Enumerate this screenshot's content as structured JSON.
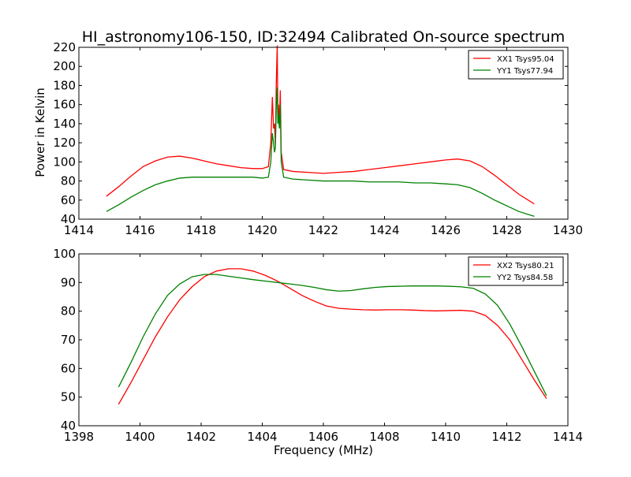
{
  "figure": {
    "title": "HI_astronomy106-150, ID:32494 Calibrated On-source spectrum",
    "shared_xlabel": "Frequency (MHz)"
  },
  "colors": {
    "XX": "#ff0000",
    "YY": "#008000",
    "axes": "#000000",
    "background": "#ffffff"
  },
  "chart_data": [
    {
      "type": "line",
      "title": "HI_astronomy106-150, ID:32494 Calibrated On-source spectrum",
      "xlabel": "",
      "ylabel": "Power in Kelvin",
      "xlim": [
        1414,
        1430
      ],
      "ylim": [
        40,
        220
      ],
      "xticks": [
        1414,
        1416,
        1418,
        1420,
        1422,
        1424,
        1426,
        1428,
        1430
      ],
      "yticks": [
        40,
        60,
        80,
        100,
        120,
        140,
        160,
        180,
        200,
        220
      ],
      "grid": false,
      "legend_position": "top-right",
      "series": [
        {
          "name": "XX1 Tsys95.04",
          "color": "#ff0000",
          "x": [
            1414.9,
            1415.3,
            1415.7,
            1416.1,
            1416.5,
            1416.9,
            1417.3,
            1417.7,
            1418.1,
            1418.5,
            1418.9,
            1419.3,
            1419.7,
            1420.0,
            1420.2,
            1420.28,
            1420.33,
            1420.37,
            1420.4,
            1420.43,
            1420.46,
            1420.49,
            1420.51,
            1420.53,
            1420.56,
            1420.59,
            1420.62,
            1420.7,
            1421.0,
            1421.5,
            1422.0,
            1422.5,
            1423.0,
            1423.5,
            1424.0,
            1424.5,
            1425.0,
            1425.5,
            1426.0,
            1426.4,
            1426.8,
            1427.2,
            1427.6,
            1428.0,
            1428.4,
            1428.9
          ],
          "y": [
            64,
            74,
            85,
            95,
            101,
            105,
            106,
            104,
            101,
            98,
            96,
            94,
            93,
            93,
            95,
            120,
            168,
            135,
            140,
            118,
            185,
            222,
            150,
            160,
            140,
            175,
            110,
            92,
            90,
            89,
            88,
            89,
            90,
            92,
            94,
            96,
            98,
            100,
            102,
            103,
            101,
            95,
            86,
            76,
            66,
            56
          ]
        },
        {
          "name": "YY1 Tsys77.94",
          "color": "#008000",
          "x": [
            1414.9,
            1415.3,
            1415.7,
            1416.1,
            1416.5,
            1416.9,
            1417.3,
            1417.7,
            1418.1,
            1418.5,
            1418.9,
            1419.3,
            1419.7,
            1420.0,
            1420.2,
            1420.28,
            1420.33,
            1420.37,
            1420.4,
            1420.43,
            1420.46,
            1420.49,
            1420.51,
            1420.53,
            1420.56,
            1420.59,
            1420.62,
            1420.7,
            1421.0,
            1421.5,
            1422.0,
            1422.5,
            1423.0,
            1423.5,
            1424.0,
            1424.5,
            1425.0,
            1425.5,
            1426.0,
            1426.4,
            1426.8,
            1427.2,
            1427.6,
            1428.0,
            1428.4,
            1428.9
          ],
          "y": [
            48,
            55,
            63,
            70,
            76,
            80,
            83,
            84,
            84,
            84,
            84,
            84,
            84,
            83,
            84,
            100,
            130,
            120,
            110,
            115,
            160,
            178,
            140,
            150,
            135,
            160,
            100,
            84,
            82,
            81,
            80,
            80,
            80,
            79,
            79,
            79,
            78,
            78,
            77,
            76,
            73,
            67,
            60,
            54,
            48,
            43
          ]
        }
      ]
    },
    {
      "type": "line",
      "title": "",
      "xlabel": "Frequency (MHz)",
      "ylabel": "",
      "xlim": [
        1398,
        1414
      ],
      "ylim": [
        40,
        100
      ],
      "xticks": [
        1398,
        1400,
        1402,
        1404,
        1406,
        1408,
        1410,
        1412,
        1414
      ],
      "yticks": [
        40,
        50,
        60,
        70,
        80,
        90,
        100
      ],
      "grid": false,
      "legend_position": "top-right",
      "series": [
        {
          "name": "XX2 Tsys80.21",
          "color": "#ff0000",
          "x": [
            1399.3,
            1399.7,
            1400.1,
            1400.5,
            1400.9,
            1401.3,
            1401.7,
            1402.1,
            1402.5,
            1402.9,
            1403.3,
            1403.7,
            1404.1,
            1404.5,
            1404.9,
            1405.3,
            1405.7,
            1406.1,
            1406.5,
            1406.9,
            1407.3,
            1407.7,
            1408.1,
            1408.5,
            1408.9,
            1409.3,
            1409.7,
            1410.1,
            1410.5,
            1410.9,
            1411.3,
            1411.7,
            1412.1,
            1412.5,
            1412.9,
            1413.3
          ],
          "y": [
            47.5,
            55,
            63,
            71,
            78,
            84,
            88.5,
            92,
            94,
            94.8,
            94.8,
            94,
            92.5,
            90.5,
            88,
            85.5,
            83.5,
            81.8,
            81,
            80.7,
            80.5,
            80.4,
            80.5,
            80.5,
            80.4,
            80.2,
            80.1,
            80.2,
            80.3,
            80,
            78.5,
            75,
            70,
            63,
            56,
            49.5
          ]
        },
        {
          "name": "YY2 Tsys84.58",
          "color": "#008000",
          "x": [
            1399.3,
            1399.7,
            1400.1,
            1400.5,
            1400.9,
            1401.3,
            1401.7,
            1402.1,
            1402.5,
            1402.9,
            1403.3,
            1403.7,
            1404.1,
            1404.5,
            1404.9,
            1405.3,
            1405.7,
            1406.1,
            1406.5,
            1406.9,
            1407.3,
            1407.7,
            1408.1,
            1408.5,
            1408.9,
            1409.3,
            1409.7,
            1410.1,
            1410.5,
            1410.9,
            1411.3,
            1411.7,
            1412.1,
            1412.5,
            1412.9,
            1413.3
          ],
          "y": [
            53.5,
            62,
            71,
            79,
            85.5,
            89.5,
            92,
            92.8,
            92.8,
            92.2,
            91.6,
            91,
            90.5,
            90,
            89.5,
            89,
            88.3,
            87.5,
            87,
            87.2,
            87.8,
            88.3,
            88.6,
            88.7,
            88.8,
            88.8,
            88.8,
            88.7,
            88.5,
            88,
            86,
            82,
            75.5,
            67.5,
            59,
            50.5
          ]
        }
      ]
    }
  ]
}
